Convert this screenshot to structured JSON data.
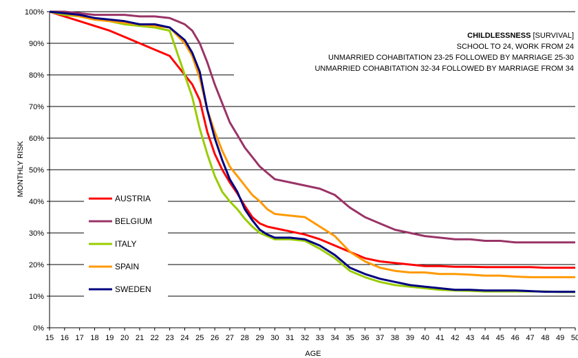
{
  "chart_data": {
    "type": "line",
    "title": "",
    "xlabel": "AGE",
    "ylabel": "MONTHLY RISK",
    "xlim": [
      15,
      50
    ],
    "ylim": [
      0,
      100
    ],
    "x_ticks": [
      "15",
      "16",
      "17",
      "18",
      "19",
      "20",
      "21",
      "22",
      "23",
      "24",
      "25",
      "26",
      "27",
      "28",
      "29",
      "30",
      "31",
      "32",
      "33",
      "34",
      "35",
      "36",
      "37",
      "38",
      "39",
      "40",
      "41",
      "42",
      "43",
      "44",
      "45",
      "46",
      "47",
      "48",
      "49",
      "50"
    ],
    "y_ticks": [
      "0%",
      "10%",
      "20%",
      "30%",
      "40%",
      "50%",
      "60%",
      "70%",
      "80%",
      "90%",
      "100%"
    ],
    "grid": "horizontal",
    "legend_position": "left-center",
    "annotation": {
      "title_bold": "CHILDLESSNESS",
      "title_rest": " [SURVIVAL]",
      "lines": [
        "SCHOOL TO 24, WORK FROM 24",
        "UNMARRIED COHABITATION 23-25 FOLLOWED BY MARRIAGE 25-30",
        "UNMARRIED COHABITATION 32-34 FOLLOWED BY MARRIAGE FROM 34"
      ]
    },
    "series": [
      {
        "name": "AUSTRIA",
        "color": "#ff0000",
        "x": [
          15,
          16,
          17,
          18,
          19,
          20,
          21,
          22,
          23,
          24,
          24.5,
          25,
          25.5,
          26,
          26.5,
          27,
          27.5,
          28,
          28.5,
          29,
          29.5,
          30,
          31,
          32,
          33,
          34,
          35,
          36,
          37,
          38,
          39,
          40,
          41,
          42,
          43,
          44,
          45,
          46,
          47,
          48,
          49,
          50
        ],
        "y": [
          100,
          98.5,
          97,
          95.5,
          94,
          92,
          90,
          88,
          86,
          80,
          77,
          72,
          62,
          55,
          50,
          46,
          42.5,
          38.5,
          35,
          33,
          32,
          31.5,
          30.5,
          29.5,
          28,
          26,
          24,
          22,
          21,
          20.5,
          20,
          19.5,
          19.5,
          19.3,
          19.3,
          19.2,
          19.2,
          19.2,
          19.2,
          19,
          19,
          19
        ]
      },
      {
        "name": "BELGIUM",
        "color": "#993366",
        "x": [
          15,
          16,
          17,
          18,
          19,
          20,
          21,
          22,
          23,
          24,
          24.5,
          25,
          25.5,
          26,
          26.5,
          27,
          27.5,
          28,
          28.5,
          29,
          29.5,
          30,
          31,
          32,
          33,
          34,
          35,
          36,
          37,
          38,
          39,
          40,
          41,
          42,
          43,
          44,
          45,
          46,
          47,
          48,
          49,
          50
        ],
        "y": [
          100,
          100,
          99.5,
          99,
          99,
          99,
          98.5,
          98.5,
          98,
          96,
          94,
          90,
          84,
          77,
          71,
          65,
          61,
          57,
          54,
          51,
          49,
          47,
          46,
          45,
          44,
          42,
          38,
          35,
          33,
          31,
          30,
          29,
          28.5,
          28,
          28,
          27.5,
          27.5,
          27,
          27,
          27,
          27,
          27
        ]
      },
      {
        "name": "ITALY",
        "color": "#99cc00",
        "x": [
          15,
          16,
          17,
          18,
          19,
          20,
          21,
          22,
          23,
          24,
          24.5,
          25,
          25.5,
          26,
          26.5,
          27,
          27.5,
          28,
          28.5,
          29,
          29.5,
          30,
          31,
          32,
          33,
          34,
          35,
          36,
          37,
          38,
          39,
          40,
          41,
          42,
          43,
          44,
          45,
          46,
          47,
          48,
          49,
          50
        ],
        "y": [
          100,
          99,
          98.5,
          97.5,
          97,
          96,
          95.5,
          95,
          94,
          80,
          73,
          63,
          55,
          48,
          43,
          40,
          37.5,
          34.5,
          32,
          30,
          29,
          28,
          28,
          27.5,
          25,
          22,
          18,
          16,
          14.5,
          13.5,
          13,
          12.5,
          12,
          11.8,
          11.7,
          11.5,
          11.5,
          11.5,
          11.5,
          11.5,
          11.3,
          11.3
        ]
      },
      {
        "name": "SPAIN",
        "color": "#ff9900",
        "x": [
          15,
          16,
          17,
          18,
          19,
          20,
          21,
          22,
          23,
          24,
          24.5,
          25,
          25.5,
          26,
          26.5,
          27,
          27.5,
          28,
          28.5,
          29,
          29.5,
          30,
          31,
          32,
          33,
          34,
          35,
          36,
          37,
          38,
          39,
          40,
          41,
          42,
          43,
          44,
          45,
          46,
          47,
          48,
          49,
          50
        ],
        "y": [
          100,
          99.5,
          98.5,
          97.5,
          97,
          96.5,
          96,
          95.5,
          95,
          90,
          86,
          79,
          69,
          62,
          56,
          51,
          48,
          45,
          42,
          40,
          37.5,
          36,
          35.5,
          35,
          32,
          29,
          24,
          21,
          19,
          18,
          17.5,
          17.5,
          17,
          17,
          16.8,
          16.5,
          16.5,
          16.2,
          16,
          16,
          16,
          16
        ]
      },
      {
        "name": "SWEDEN",
        "color": "#000080",
        "x": [
          15,
          16,
          17,
          18,
          19,
          20,
          21,
          22,
          23,
          24,
          24.5,
          25,
          25.5,
          26,
          26.5,
          27,
          27.5,
          28,
          28.5,
          29,
          29.5,
          30,
          31,
          32,
          33,
          34,
          35,
          36,
          37,
          38,
          39,
          40,
          41,
          42,
          43,
          44,
          45,
          46,
          47,
          48,
          49,
          50
        ],
        "y": [
          100,
          99.5,
          99,
          98,
          97.5,
          97,
          96,
          96,
          95,
          91,
          87,
          81,
          69,
          60,
          53,
          47,
          43,
          37.5,
          34,
          31,
          29.5,
          28.5,
          28.5,
          28,
          26,
          23,
          19,
          17,
          15.5,
          14.5,
          13.5,
          13,
          12.5,
          12,
          12,
          11.8,
          11.8,
          11.8,
          11.6,
          11.4,
          11.4,
          11.4
        ]
      }
    ]
  }
}
